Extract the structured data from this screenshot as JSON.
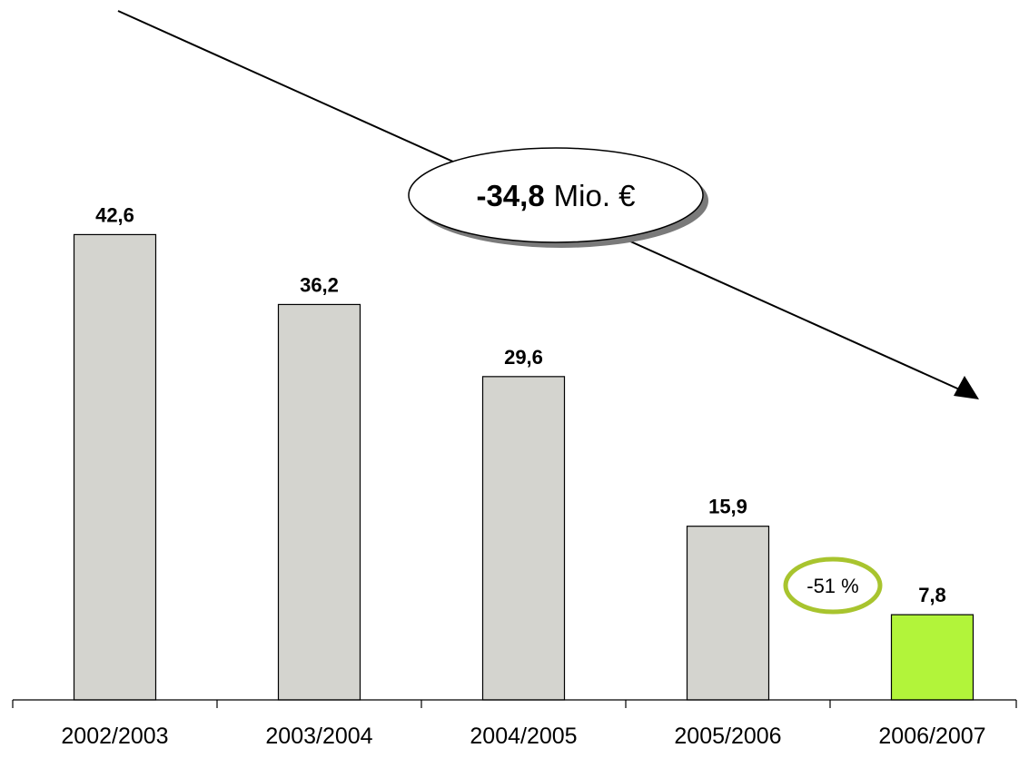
{
  "chart_data": {
    "type": "bar",
    "categories": [
      "2002/2003",
      "2003/2004",
      "2004/2005",
      "2005/2006",
      "2006/2007"
    ],
    "values": [
      42.6,
      36.2,
      29.6,
      15.9,
      7.8
    ],
    "value_labels": [
      "42,6",
      "36,2",
      "29,6",
      "15,9",
      "7,8"
    ],
    "bar_colors": [
      "#d4d4cf",
      "#d4d4cf",
      "#d4d4cf",
      "#d4d4cf",
      "#b2f43a"
    ],
    "ylim": [
      0,
      62
    ],
    "title": "",
    "xlabel": "",
    "ylabel": "",
    "grid": false,
    "annotations": {
      "total_change_value": "-34,8",
      "total_change_unit": "Mio. €",
      "percent_change": "-51 %",
      "percent_ring_color": "#a8c42e"
    }
  }
}
